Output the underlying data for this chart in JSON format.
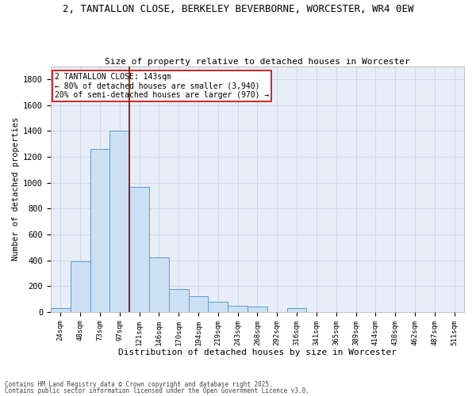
{
  "title_line1": "2, TANTALLON CLOSE, BERKELEY BEVERBORNE, WORCESTER, WR4 0EW",
  "title_line2": "Size of property relative to detached houses in Worcester",
  "xlabel": "Distribution of detached houses by size in Worcester",
  "ylabel": "Number of detached properties",
  "bins": [
    "24sqm",
    "48sqm",
    "73sqm",
    "97sqm",
    "121sqm",
    "146sqm",
    "170sqm",
    "194sqm",
    "219sqm",
    "243sqm",
    "268sqm",
    "292sqm",
    "316sqm",
    "341sqm",
    "365sqm",
    "389sqm",
    "414sqm",
    "438sqm",
    "462sqm",
    "487sqm",
    "511sqm"
  ],
  "values": [
    30,
    390,
    1260,
    1400,
    970,
    420,
    175,
    120,
    80,
    50,
    40,
    0,
    30,
    0,
    0,
    0,
    0,
    0,
    0,
    0,
    0
  ],
  "bar_color": "#cce0f5",
  "bar_edge_color": "#5b9bd5",
  "vline_color": "#8b0000",
  "annotation_text": "2 TANTALLON CLOSE: 143sqm\n← 80% of detached houses are smaller (3,940)\n20% of semi-detached houses are larger (970) →",
  "annotation_box_color": "#ffffff",
  "annotation_box_edge": "#cc0000",
  "ylim": [
    0,
    1900
  ],
  "yticks": [
    0,
    200,
    400,
    600,
    800,
    1000,
    1200,
    1400,
    1600,
    1800
  ],
  "grid_color": "#d0d8e8",
  "background_color": "#e8eef8",
  "footer_line1": "Contains HM Land Registry data © Crown copyright and database right 2025.",
  "footer_line2": "Contains public sector information licensed under the Open Government Licence v3.0."
}
